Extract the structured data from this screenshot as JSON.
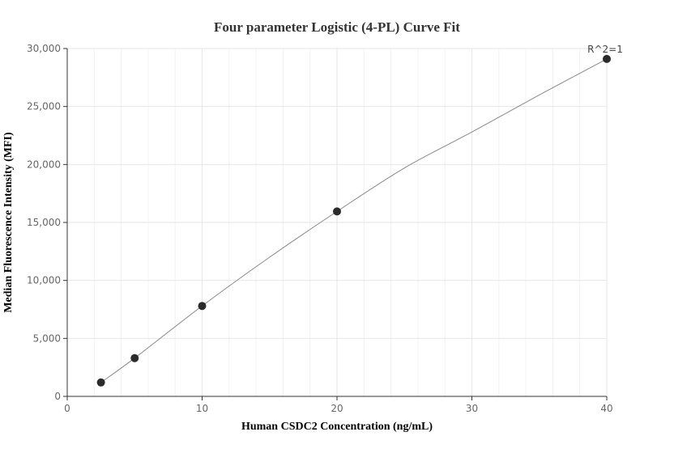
{
  "chart_data": {
    "type": "scatter",
    "title": "Four parameter Logistic (4-PL) Curve Fit",
    "xlabel": "Human CSDC2 Concentration (ng/mL)",
    "ylabel": "Median Fluorescence Intensity (MFI)",
    "xlim": [
      0,
      40
    ],
    "ylim": [
      0,
      30000
    ],
    "x_ticks": [
      0,
      10,
      20,
      30,
      40
    ],
    "x_tick_labels": [
      "0",
      "10",
      "20",
      "30",
      "40"
    ],
    "y_ticks": [
      0,
      5000,
      10000,
      15000,
      20000,
      25000,
      30000
    ],
    "y_tick_labels": [
      "0",
      "5,000",
      "10,000",
      "15,000",
      "20,000",
      "25,000",
      "30,000"
    ],
    "grid": true,
    "points": [
      {
        "x": 2.5,
        "y": 1200
      },
      {
        "x": 5,
        "y": 3300
      },
      {
        "x": 10,
        "y": 7800
      },
      {
        "x": 20,
        "y": 15950
      },
      {
        "x": 40,
        "y": 29100
      }
    ],
    "fit_curve": [
      {
        "x": 2.5,
        "y": 1200
      },
      {
        "x": 5,
        "y": 3300
      },
      {
        "x": 10,
        "y": 7800
      },
      {
        "x": 15,
        "y": 12000
      },
      {
        "x": 20,
        "y": 15950
      },
      {
        "x": 25,
        "y": 19700
      },
      {
        "x": 30,
        "y": 22800
      },
      {
        "x": 35,
        "y": 26000
      },
      {
        "x": 40,
        "y": 29100
      }
    ],
    "annotation": "R^2=1",
    "colors": {
      "points": "#2b2b2b",
      "curve": "#888888",
      "grid": "#e6e6e6",
      "axis": "#333333"
    }
  }
}
